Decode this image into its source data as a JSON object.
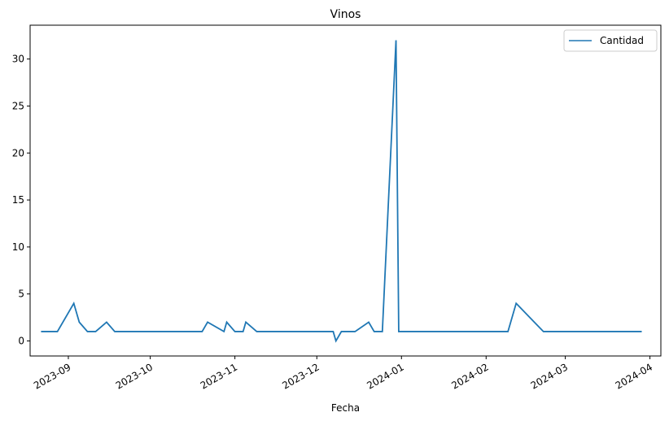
{
  "chart_data": {
    "type": "line",
    "title": "Vinos",
    "xlabel": "Fecha",
    "ylabel": "",
    "ylim": [
      -1.6,
      33.6
    ],
    "y_ticks": [
      0,
      5,
      10,
      15,
      20,
      25,
      30
    ],
    "x_ticks": [
      "2023-09",
      "2023-10",
      "2023-11",
      "2023-12",
      "2024-01",
      "2024-02",
      "2024-03",
      "2024-04"
    ],
    "xlim": [
      "2023-08-18",
      "2024-04-05"
    ],
    "legend_position": "top-right",
    "grid": false,
    "series": [
      {
        "name": "Cantidad",
        "color": "#1f77b4",
        "points": [
          {
            "x": "2023-08-22",
            "y": 1
          },
          {
            "x": "2023-08-28",
            "y": 1
          },
          {
            "x": "2023-09-03",
            "y": 4
          },
          {
            "x": "2023-09-05",
            "y": 2
          },
          {
            "x": "2023-09-08",
            "y": 1
          },
          {
            "x": "2023-09-11",
            "y": 1
          },
          {
            "x": "2023-09-15",
            "y": 2
          },
          {
            "x": "2023-09-18",
            "y": 1
          },
          {
            "x": "2023-10-20",
            "y": 1
          },
          {
            "x": "2023-10-22",
            "y": 2
          },
          {
            "x": "2023-10-28",
            "y": 1
          },
          {
            "x": "2023-10-29",
            "y": 2
          },
          {
            "x": "2023-11-01",
            "y": 1
          },
          {
            "x": "2023-11-04",
            "y": 1
          },
          {
            "x": "2023-11-05",
            "y": 2
          },
          {
            "x": "2023-11-09",
            "y": 1
          },
          {
            "x": "2023-12-07",
            "y": 1
          },
          {
            "x": "2023-12-08",
            "y": 0
          },
          {
            "x": "2023-12-10",
            "y": 1
          },
          {
            "x": "2023-12-15",
            "y": 1
          },
          {
            "x": "2023-12-20",
            "y": 2
          },
          {
            "x": "2023-12-22",
            "y": 1
          },
          {
            "x": "2023-12-25",
            "y": 1
          },
          {
            "x": "2023-12-30",
            "y": 32
          },
          {
            "x": "2023-12-31",
            "y": 1
          },
          {
            "x": "2024-02-09",
            "y": 1
          },
          {
            "x": "2024-02-12",
            "y": 4
          },
          {
            "x": "2024-02-17",
            "y": 2.5
          },
          {
            "x": "2024-02-22",
            "y": 1
          },
          {
            "x": "2024-03-29",
            "y": 1
          }
        ]
      }
    ]
  }
}
